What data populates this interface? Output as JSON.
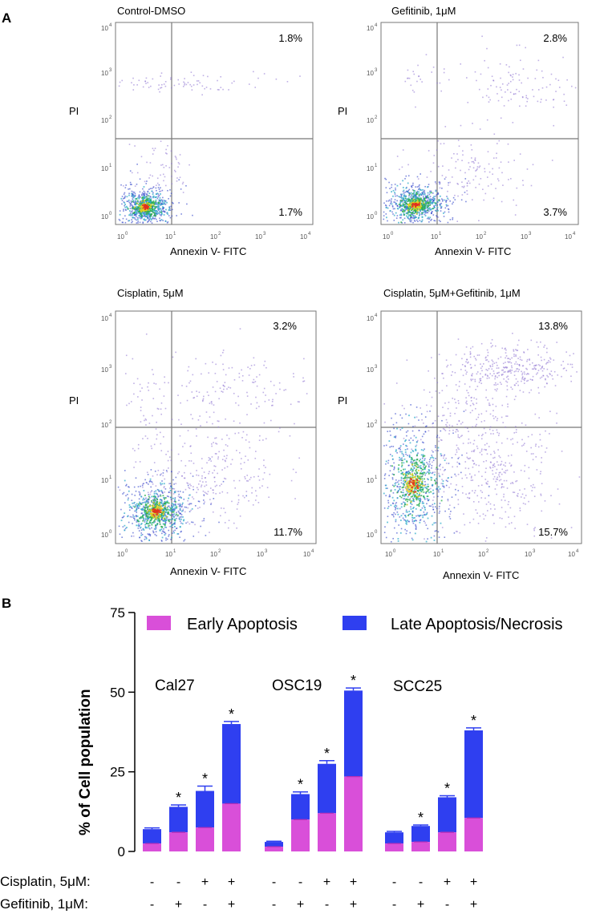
{
  "panel_a_label": "A",
  "panel_b_label": "B",
  "flow_plots": [
    {
      "title": "Control-DMSO",
      "upper_right_pct": "1.8%",
      "lower_right_pct": "1.7%",
      "y_label": "PI",
      "x_label": "Annexin V- FITC"
    },
    {
      "title": "Gefitinib, 1μM",
      "upper_right_pct": "2.8%",
      "lower_right_pct": "3.7%",
      "y_label": "PI",
      "x_label": "Annexin V- FITC"
    },
    {
      "title": "Cisplatin, 5μM",
      "upper_right_pct": "3.2%",
      "lower_right_pct": "11.7%",
      "y_label": "PI",
      "x_label": "Annexin V- FITC"
    },
    {
      "title": "Cisplatin, 5μM+Gefitinib, 1μM",
      "upper_right_pct": "13.8%",
      "lower_right_pct": "15.7%",
      "y_label": "PI",
      "x_label": "Annexin V- FITC"
    }
  ],
  "flow_axis_ticks": [
    "10",
    "10",
    "10",
    "10",
    "10"
  ],
  "flow_axis_exponents": [
    "0",
    "1",
    "2",
    "3",
    "4"
  ],
  "colors": {
    "early_apoptosis": "#d94fd9",
    "late_apoptosis": "#2f3ff0",
    "scatter_sparse": "#8a6fd0",
    "scatter_dense_mid": "#2ab04a",
    "scatter_core": "#e03020"
  },
  "chart_data": {
    "type": "bar",
    "stacked": true,
    "ylabel": "% of Cell population",
    "ylim": [
      0,
      75
    ],
    "yticks": [
      0,
      25,
      50,
      75
    ],
    "legend": [
      "Early Apoptosis",
      "Late Apoptosis/Necrosis"
    ],
    "legend_position": "top",
    "groups": [
      {
        "name": "Cal27",
        "early": [
          2.5,
          6,
          7.5,
          15
        ],
        "total": [
          7,
          14,
          19,
          40
        ],
        "error": [
          0.4,
          0.6,
          1.5,
          0.8
        ],
        "significant": [
          false,
          true,
          true,
          true
        ]
      },
      {
        "name": "OSC19",
        "early": [
          1.5,
          10,
          12,
          23.5
        ],
        "total": [
          3,
          18,
          27.5,
          50.5
        ],
        "error": [
          0.2,
          0.7,
          1.0,
          0.8
        ],
        "significant": [
          false,
          true,
          true,
          true
        ]
      },
      {
        "name": "SCC25",
        "early": [
          2.5,
          3,
          6,
          10.5
        ],
        "total": [
          6,
          8,
          17,
          38
        ],
        "error": [
          0.3,
          0.3,
          0.5,
          0.8
        ],
        "significant": [
          false,
          true,
          true,
          true
        ]
      }
    ],
    "significance_marker": "*",
    "treatments": [
      {
        "label": "Cisplatin, 5μM:",
        "signs": [
          "-",
          "-",
          "+",
          "+",
          "-",
          "-",
          "+",
          "+",
          "-",
          "-",
          "+",
          "+"
        ]
      },
      {
        "label": "Gefitinib, 1μM:",
        "signs": [
          "-",
          "+",
          "-",
          "+",
          "-",
          "+",
          "-",
          "+",
          "-",
          "+",
          "-",
          "+"
        ]
      }
    ]
  }
}
